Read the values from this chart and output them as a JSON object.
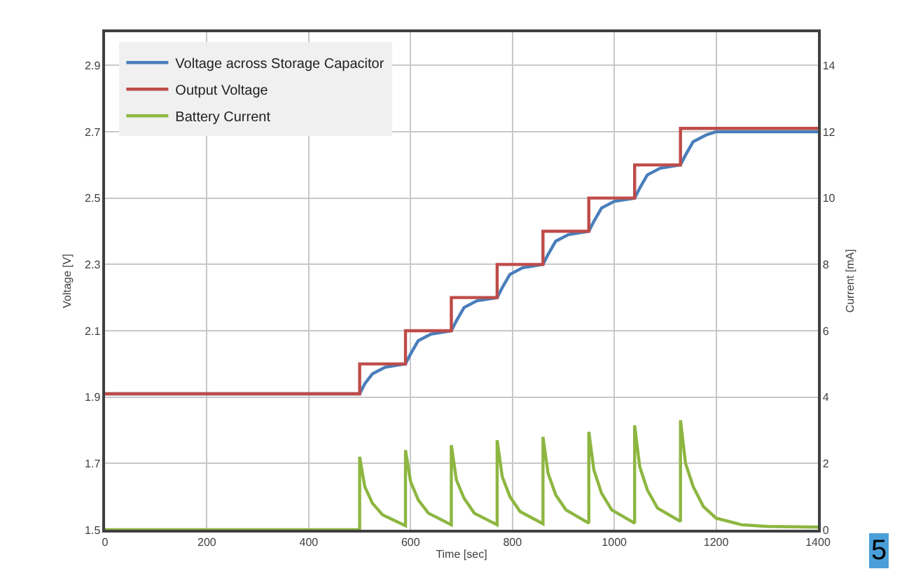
{
  "chart_data": {
    "type": "line",
    "xlabel": "Time [sec]",
    "ylabel": "Voltage [V]",
    "y2label": "Current [mA]",
    "xlim": [
      0,
      1400
    ],
    "xticks": [
      0,
      200,
      400,
      600,
      800,
      1000,
      1200,
      1400
    ],
    "ylim": [
      1.5,
      3.0
    ],
    "yticks": [
      1.5,
      1.7,
      1.9,
      2.1,
      2.3,
      2.5,
      2.7,
      2.9
    ],
    "y2lim": [
      0,
      15
    ],
    "y2ticks": [
      0,
      2,
      4,
      6,
      8,
      10,
      12,
      14
    ],
    "grid": true,
    "legend": "top left",
    "marker": "none",
    "line_style": "solid",
    "annotations": [
      "5"
    ],
    "series": [
      {
        "name": "Voltage across Storage Capacitor",
        "color": "#4a7ebb",
        "x": [
          0,
          500,
          510,
          525,
          550,
          590,
          600,
          615,
          640,
          680,
          690,
          705,
          730,
          770,
          780,
          795,
          820,
          860,
          870,
          885,
          910,
          950,
          960,
          975,
          1000,
          1040,
          1050,
          1065,
          1090,
          1130,
          1140,
          1155,
          1180,
          1200,
          1250,
          1400
        ],
        "values": [
          1.91,
          1.91,
          1.94,
          1.97,
          1.99,
          2.0,
          2.03,
          2.07,
          2.09,
          2.1,
          2.13,
          2.17,
          2.19,
          2.2,
          2.23,
          2.27,
          2.29,
          2.3,
          2.33,
          2.37,
          2.39,
          2.4,
          2.43,
          2.47,
          2.49,
          2.5,
          2.53,
          2.57,
          2.59,
          2.6,
          2.63,
          2.67,
          2.69,
          2.7,
          2.7,
          2.7
        ]
      },
      {
        "name": "Output Voltage",
        "color": "#be4b48",
        "type": "step",
        "x": [
          0,
          500,
          590,
          680,
          770,
          860,
          950,
          1040,
          1130,
          1400
        ],
        "values": [
          1.91,
          2.0,
          2.1,
          2.2,
          2.3,
          2.4,
          2.5,
          2.6,
          2.71,
          2.71
        ]
      },
      {
        "name": "Battery Current",
        "color": "#8db640",
        "axis": "y2",
        "x": [
          0,
          500,
          500,
          510,
          525,
          545,
          590,
          590,
          600,
          615,
          635,
          680,
          680,
          690,
          705,
          725,
          770,
          770,
          780,
          795,
          815,
          860,
          860,
          870,
          885,
          905,
          950,
          950,
          960,
          975,
          995,
          1040,
          1040,
          1050,
          1065,
          1085,
          1130,
          1130,
          1140,
          1155,
          1175,
          1200,
          1250,
          1300,
          1400
        ],
        "values": [
          0,
          0,
          2.2,
          1.3,
          0.8,
          0.45,
          0.12,
          2.4,
          1.45,
          0.9,
          0.5,
          0.15,
          2.55,
          1.5,
          0.95,
          0.5,
          0.15,
          2.7,
          1.6,
          1.0,
          0.55,
          0.18,
          2.8,
          1.7,
          1.05,
          0.6,
          0.2,
          2.95,
          1.8,
          1.1,
          0.6,
          0.2,
          3.15,
          1.9,
          1.2,
          0.65,
          0.25,
          3.3,
          2.0,
          1.3,
          0.7,
          0.35,
          0.15,
          0.1,
          0.08
        ]
      }
    ]
  }
}
